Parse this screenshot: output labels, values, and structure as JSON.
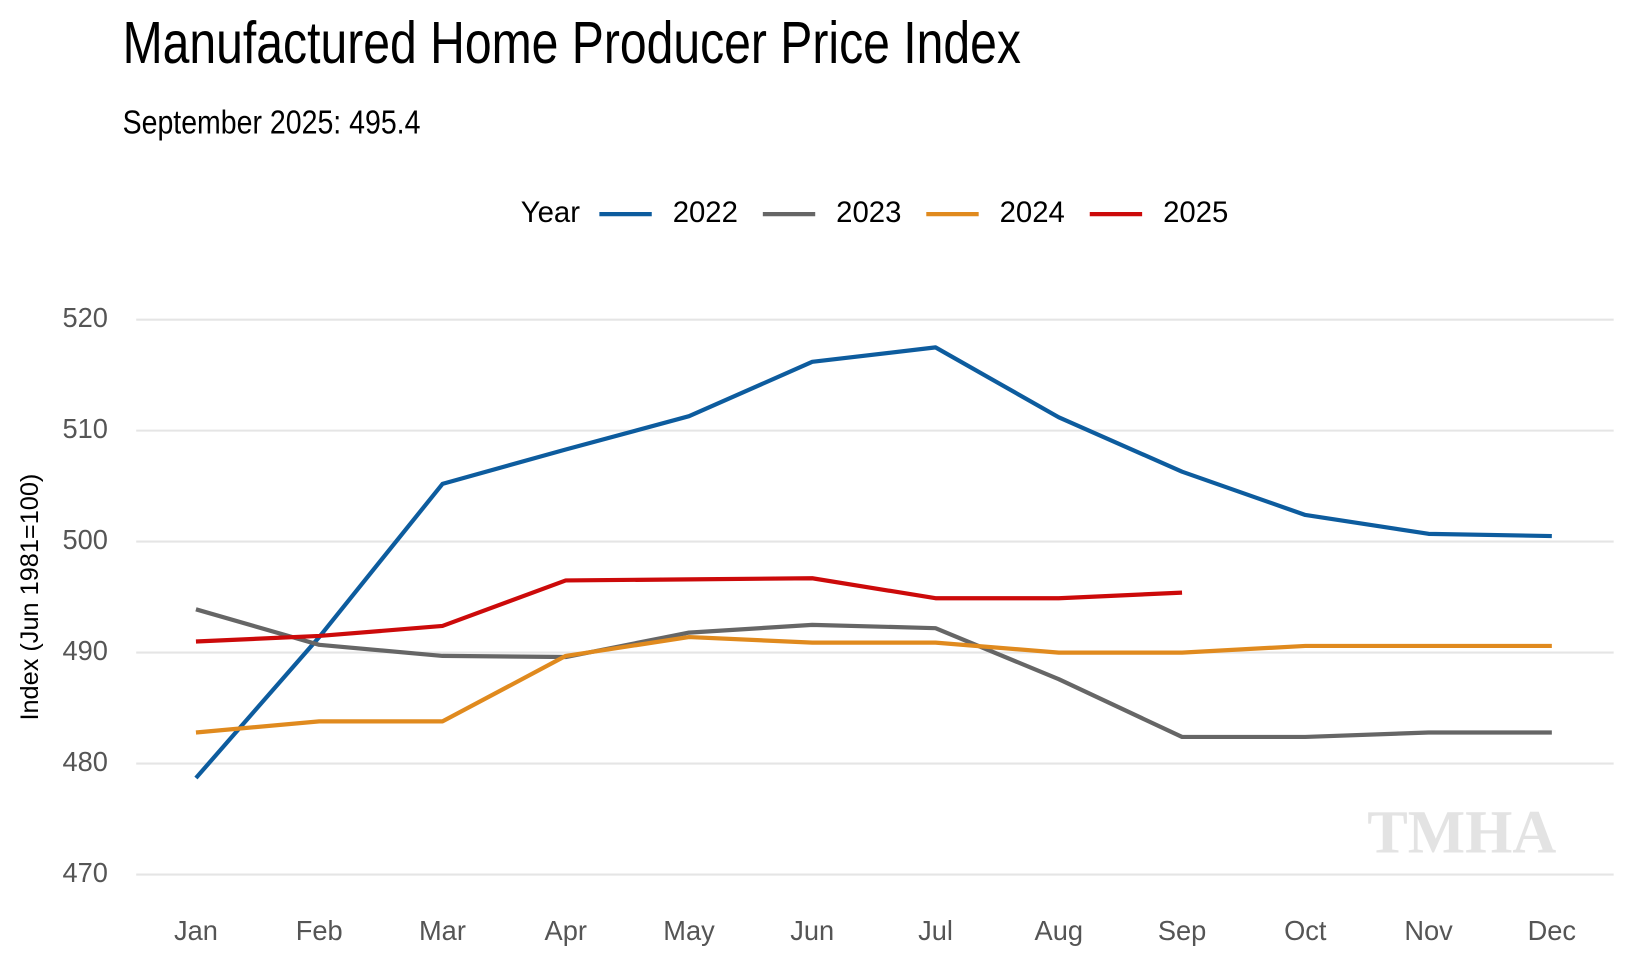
{
  "chart_data": {
    "type": "line",
    "title": "Manufactured Home Producer Price Index",
    "subtitle": "September 2025: 495.4",
    "y_label": "Index (Jun 1981=100)",
    "legend_title": "Year",
    "legend_position": "top",
    "watermark": "TMHA",
    "categories": [
      "Jan",
      "Feb",
      "Mar",
      "Apr",
      "May",
      "Jun",
      "Jul",
      "Aug",
      "Sep",
      "Oct",
      "Nov",
      "Dec"
    ],
    "series": [
      {
        "name": "2022",
        "color": "#0d5c9e",
        "values": [
          478.7,
          491.4,
          505.2,
          508.3,
          511.3,
          516.2,
          517.5,
          511.2,
          506.3,
          502.4,
          500.7,
          500.5
        ]
      },
      {
        "name": "2023",
        "color": "#666666",
        "values": [
          493.9,
          490.7,
          489.7,
          489.6,
          491.8,
          492.5,
          492.2,
          487.6,
          482.4,
          482.4,
          482.8,
          482.8
        ]
      },
      {
        "name": "2024",
        "color": "#e08a1e",
        "values": [
          482.8,
          483.8,
          483.8,
          489.7,
          491.4,
          490.9,
          490.9,
          490.0,
          490.0,
          490.6,
          490.6,
          490.6
        ]
      },
      {
        "name": "2025",
        "color": "#cc0a0a",
        "values": [
          491.0,
          491.5,
          492.4,
          496.5,
          496.6,
          496.7,
          494.9,
          494.9,
          495.4,
          null,
          null,
          null
        ]
      }
    ],
    "ylim": [
      470,
      520
    ],
    "yticks": [
      470,
      480,
      490,
      500,
      510,
      520
    ],
    "grid": true
  }
}
